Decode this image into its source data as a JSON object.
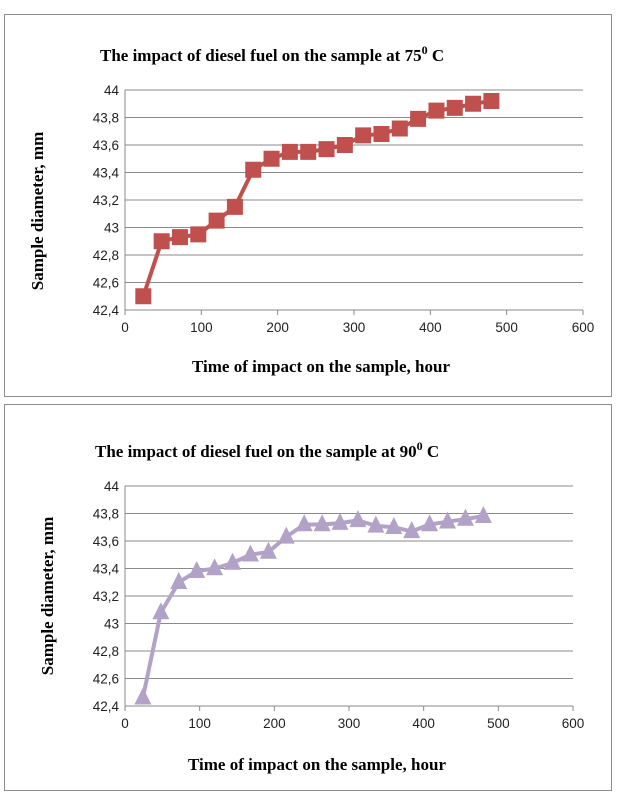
{
  "chart_data": [
    {
      "type": "line",
      "title_main": "The impact of diesel fuel on the sample at 75",
      "title_sup": "0",
      "title_end": " C",
      "xlabel": "Time of impact on the sample, hour",
      "ylabel": "Sample diameter, mm",
      "xlim": [
        0,
        600
      ],
      "ylim": [
        42.4,
        44
      ],
      "x_ticks": [
        "0",
        "100",
        "200",
        "300",
        "400",
        "500",
        "600"
      ],
      "y_ticks": [
        "42,4",
        "42,6",
        "42,8",
        "43",
        "43,2",
        "43,4",
        "43,6",
        "43,8",
        "44"
      ],
      "grid": true,
      "marker": "square",
      "color": "#c0504d",
      "series": [
        {
          "x": [
            24,
            48,
            72,
            96,
            120,
            144,
            168,
            192,
            216,
            240,
            264,
            288,
            312,
            336,
            360,
            384,
            408,
            432,
            456,
            480
          ],
          "y": [
            42.5,
            42.9,
            42.93,
            42.95,
            43.05,
            43.15,
            43.42,
            43.5,
            43.55,
            43.55,
            43.57,
            43.6,
            43.67,
            43.68,
            43.72,
            43.79,
            43.85,
            43.87,
            43.9,
            43.92
          ]
        }
      ]
    },
    {
      "type": "line",
      "title_main": "The impact of diesel fuel on the sample at 90",
      "title_sup": "0",
      "title_end": " C",
      "xlabel": "Time of impact on the sample, hour",
      "ylabel": "Sample diameter, mm",
      "xlim": [
        0,
        600
      ],
      "ylim": [
        42.4,
        44
      ],
      "x_ticks": [
        "0",
        "100",
        "200",
        "300",
        "400",
        "500",
        "600"
      ],
      "y_ticks": [
        "42,4",
        "42,6",
        "42,8",
        "43",
        "43,2",
        "43,4",
        "43,6",
        "43,8",
        "44"
      ],
      "grid": true,
      "marker": "triangle",
      "color": "#b3a2c7",
      "series": [
        {
          "x": [
            24,
            48,
            72,
            96,
            120,
            144,
            168,
            192,
            216,
            240,
            264,
            288,
            312,
            336,
            360,
            384,
            408,
            432,
            456,
            480
          ],
          "y": [
            42.46,
            43.08,
            43.3,
            43.38,
            43.4,
            43.44,
            43.5,
            43.52,
            43.63,
            43.72,
            43.72,
            43.73,
            43.75,
            43.71,
            43.7,
            43.67,
            43.72,
            43.74,
            43.76,
            43.78
          ]
        }
      ]
    }
  ]
}
